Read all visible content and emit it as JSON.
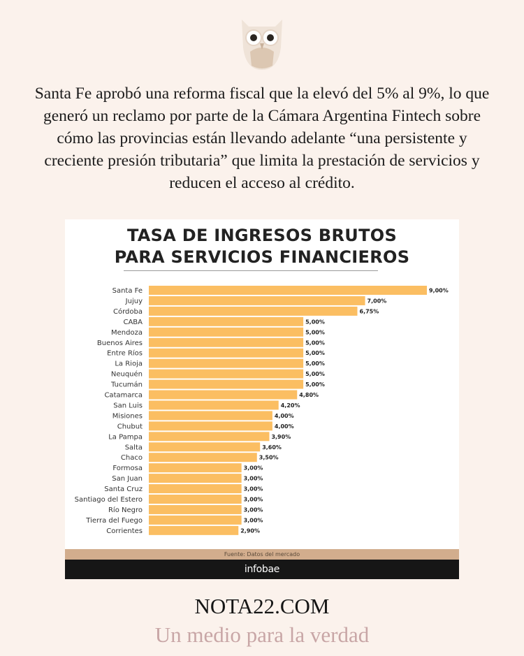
{
  "page": {
    "logo_icon": "owl-logo-icon",
    "intro_text": "Santa Fe aprobó una reforma fiscal que la elevó del 5% al 9%, lo que generó un reclamo por parte de la Cámara Argentina Fintech sobre cómo las provincias están llevando adelante “una persistente y creciente presión tributaria” que limita la prestación de servicios y reducen el acceso al crédito.",
    "site_name": "NOTA22.COM",
    "tagline": "Un medio para la verdad"
  },
  "colors": {
    "background": "#fbf2ec",
    "bar": "#fbbe62",
    "source_bar": "#d2ad8d",
    "brand_bar": "#161616",
    "tagline": "#c8a6a6"
  },
  "chart_data": {
    "type": "bar",
    "orientation": "horizontal",
    "title_line1": "TASA DE INGRESOS BRUTOS",
    "title_line2": "PARA SERVICIOS FINANCIEROS",
    "categories": [
      "Santa Fe",
      "Jujuy",
      "Córdoba",
      "CABA",
      "Mendoza",
      "Buenos Aires",
      "Entre Ríos",
      "La Rioja",
      "Neuquén",
      "Tucumán",
      "Catamarca",
      "San Luis",
      "Misiones",
      "Chubut",
      "La Pampa",
      "Salta",
      "Chaco",
      "Formosa",
      "San Juan",
      "Santa Cruz",
      "Santiago del Estero",
      "Río Negro",
      "Tierra del Fuego",
      "Corrientes"
    ],
    "values": [
      9.0,
      7.0,
      6.75,
      5.0,
      5.0,
      5.0,
      5.0,
      5.0,
      5.0,
      5.0,
      4.8,
      4.2,
      4.0,
      4.0,
      3.9,
      3.6,
      3.5,
      3.0,
      3.0,
      3.0,
      3.0,
      3.0,
      3.0,
      2.9
    ],
    "value_labels": [
      "9,00%",
      "7,00%",
      "6,75%",
      "5,00%",
      "5,00%",
      "5,00%",
      "5,00%",
      "5,00%",
      "5,00%",
      "5,00%",
      "4,80%",
      "4,20%",
      "4,00%",
      "4,00%",
      "3,90%",
      "3,60%",
      "3,50%",
      "3,00%",
      "3,00%",
      "3,00%",
      "3,00%",
      "3,00%",
      "3,00%",
      "2,90%"
    ],
    "xlim": [
      0,
      9
    ],
    "grid": false,
    "source": "Fuente:  Datos del mercado",
    "brand": "infobae"
  }
}
